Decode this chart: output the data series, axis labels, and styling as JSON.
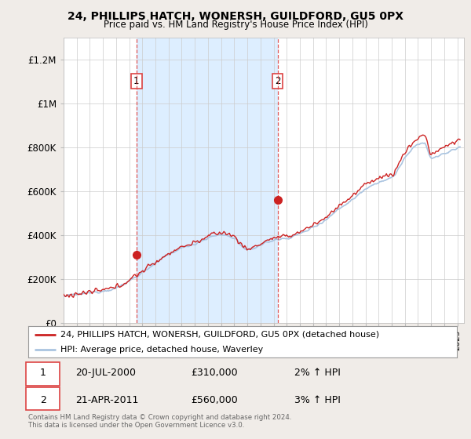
{
  "title": "24, PHILLIPS HATCH, WONERSH, GUILDFORD, GU5 0PX",
  "subtitle": "Price paid vs. HM Land Registry's House Price Index (HPI)",
  "legend_line1": "24, PHILLIPS HATCH, WONERSH, GUILDFORD, GU5 0PX (detached house)",
  "legend_line2": "HPI: Average price, detached house, Waverley",
  "footnote": "Contains HM Land Registry data © Crown copyright and database right 2024.\nThis data is licensed under the Open Government Licence v3.0.",
  "sale1_date": "20-JUL-2000",
  "sale1_price": "£310,000",
  "sale1_hpi": "2% ↑ HPI",
  "sale1_year": 2000.55,
  "sale1_value": 310000,
  "sale2_date": "21-APR-2011",
  "sale2_price": "£560,000",
  "sale2_hpi": "3% ↑ HPI",
  "sale2_year": 2011.3,
  "sale2_value": 560000,
  "hpi_color": "#aac4e0",
  "price_color": "#cc2222",
  "vline_color": "#dd4444",
  "shade_color": "#ddeeff",
  "background_color": "#f0ece8",
  "plot_bg_color": "#ffffff",
  "ylim": [
    0,
    1300000
  ],
  "xlim_start": 1995.0,
  "xlim_end": 2025.5,
  "yticks": [
    0,
    200000,
    400000,
    600000,
    800000,
    1000000,
    1200000
  ],
  "ytick_labels": [
    "£0",
    "£200K",
    "£400K",
    "£600K",
    "£800K",
    "£1M",
    "£1.2M"
  ]
}
